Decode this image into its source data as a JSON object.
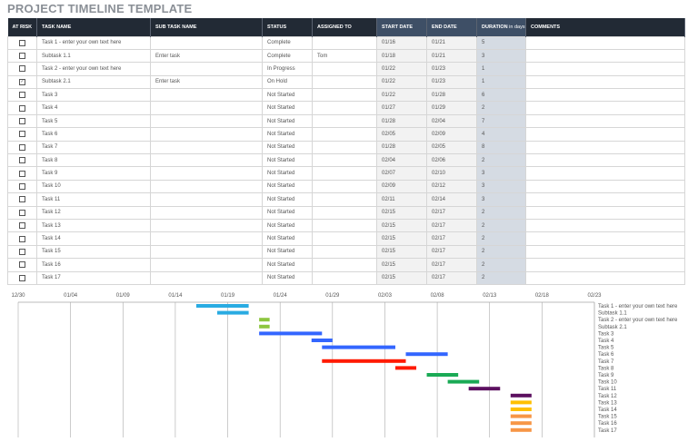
{
  "title": "PROJECT TIMELINE TEMPLATE",
  "headers": {
    "at_risk": "AT RISK",
    "task": "TASK NAME",
    "subtask": "SUB TASK NAME",
    "status": "STATUS",
    "assigned": "ASSIGNED TO",
    "start": "START DATE",
    "end": "END DATE",
    "duration": "DURATION",
    "duration_unit": "in days",
    "comments": "COMMENTS"
  },
  "rows": [
    {
      "at_risk": false,
      "task": "Task 1 - enter your own text here",
      "subtask": "",
      "status": "Complete",
      "assigned": "",
      "start": "01/16",
      "end": "01/21",
      "duration": "5",
      "comments": "",
      "color": "#29abe2"
    },
    {
      "at_risk": false,
      "task": "Subtask 1.1",
      "subtask": "Enter task",
      "status": "Complete",
      "assigned": "Tom",
      "start": "01/18",
      "end": "01/21",
      "duration": "3",
      "comments": "",
      "color": "#29abe2"
    },
    {
      "at_risk": false,
      "task": "Task 2 - enter your own text here",
      "subtask": "",
      "status": "In Progress",
      "assigned": "",
      "start": "01/22",
      "end": "01/23",
      "duration": "1",
      "comments": "",
      "color": "#8dc63f"
    },
    {
      "at_risk": true,
      "task": "Subtask 2.1",
      "subtask": "Enter task",
      "status": "On Hold",
      "assigned": "",
      "start": "01/22",
      "end": "01/23",
      "duration": "1",
      "comments": "",
      "color": "#8dc63f"
    },
    {
      "at_risk": false,
      "task": "Task 3",
      "subtask": "",
      "status": "Not Started",
      "assigned": "",
      "start": "01/22",
      "end": "01/28",
      "duration": "6",
      "comments": "",
      "color": "#3366ff"
    },
    {
      "at_risk": false,
      "task": "Task 4",
      "subtask": "",
      "status": "Not Started",
      "assigned": "",
      "start": "01/27",
      "end": "01/29",
      "duration": "2",
      "comments": "",
      "color": "#3366ff"
    },
    {
      "at_risk": false,
      "task": "Task 5",
      "subtask": "",
      "status": "Not Started",
      "assigned": "",
      "start": "01/28",
      "end": "02/04",
      "duration": "7",
      "comments": "",
      "color": "#3366ff"
    },
    {
      "at_risk": false,
      "task": "Task 6",
      "subtask": "",
      "status": "Not Started",
      "assigned": "",
      "start": "02/05",
      "end": "02/09",
      "duration": "4",
      "comments": "",
      "color": "#3366ff"
    },
    {
      "at_risk": false,
      "task": "Task 7",
      "subtask": "",
      "status": "Not Started",
      "assigned": "",
      "start": "01/28",
      "end": "02/05",
      "duration": "8",
      "comments": "",
      "color": "#ff1a00"
    },
    {
      "at_risk": false,
      "task": "Task 8",
      "subtask": "",
      "status": "Not Started",
      "assigned": "",
      "start": "02/04",
      "end": "02/06",
      "duration": "2",
      "comments": "",
      "color": "#ff1a00"
    },
    {
      "at_risk": false,
      "task": "Task 9",
      "subtask": "",
      "status": "Not Started",
      "assigned": "",
      "start": "02/07",
      "end": "02/10",
      "duration": "3",
      "comments": "",
      "color": "#1aaa55"
    },
    {
      "at_risk": false,
      "task": "Task 10",
      "subtask": "",
      "status": "Not Started",
      "assigned": "",
      "start": "02/09",
      "end": "02/12",
      "duration": "3",
      "comments": "",
      "color": "#1aaa55"
    },
    {
      "at_risk": false,
      "task": "Task 11",
      "subtask": "",
      "status": "Not Started",
      "assigned": "",
      "start": "02/11",
      "end": "02/14",
      "duration": "3",
      "comments": "",
      "color": "#5c1060"
    },
    {
      "at_risk": false,
      "task": "Task 12",
      "subtask": "",
      "status": "Not Started",
      "assigned": "",
      "start": "02/15",
      "end": "02/17",
      "duration": "2",
      "comments": "",
      "color": "#5c1060"
    },
    {
      "at_risk": false,
      "task": "Task 13",
      "subtask": "",
      "status": "Not Started",
      "assigned": "",
      "start": "02/15",
      "end": "02/17",
      "duration": "2",
      "comments": "",
      "color": "#ffc000"
    },
    {
      "at_risk": false,
      "task": "Task 14",
      "subtask": "",
      "status": "Not Started",
      "assigned": "",
      "start": "02/15",
      "end": "02/17",
      "duration": "2",
      "comments": "",
      "color": "#ffc000"
    },
    {
      "at_risk": false,
      "task": "Task 15",
      "subtask": "",
      "status": "Not Started",
      "assigned": "",
      "start": "02/15",
      "end": "02/17",
      "duration": "2",
      "comments": "",
      "color": "#f79646"
    },
    {
      "at_risk": false,
      "task": "Task 16",
      "subtask": "",
      "status": "Not Started",
      "assigned": "",
      "start": "02/15",
      "end": "02/17",
      "duration": "2",
      "comments": "",
      "color": "#f79646"
    },
    {
      "at_risk": false,
      "task": "Task 17",
      "subtask": "",
      "status": "Not Started",
      "assigned": "",
      "start": "02/15",
      "end": "02/17",
      "duration": "2",
      "comments": "",
      "color": "#f79646"
    }
  ],
  "chart_data": {
    "type": "bar",
    "orientation": "horizontal-gantt",
    "x_ticks": [
      "12/30",
      "01/04",
      "01/09",
      "01/14",
      "01/19",
      "01/24",
      "01/29",
      "02/03",
      "02/08",
      "02/13",
      "02/18",
      "02/23"
    ],
    "xlim": [
      "12/30",
      "02/23"
    ],
    "grid": true,
    "categories_from": "rows"
  }
}
